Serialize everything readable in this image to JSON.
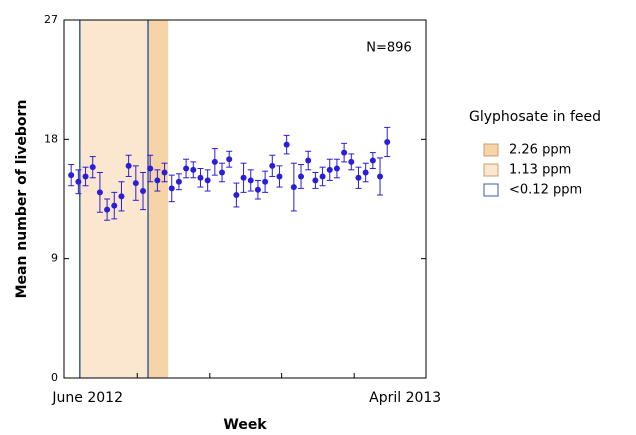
{
  "chart_data": {
    "type": "scatter",
    "xlabel": "Week",
    "ylabel": "Mean number of liveborn",
    "annotation": "N=896",
    "legend_title": "Glyphosate in feed",
    "color": "#2a1fd6",
    "ylim": [
      0,
      27
    ],
    "yticks": [
      0,
      9,
      18,
      27
    ],
    "xlim": [
      0,
      50.4
    ],
    "xticks": [
      {
        "value": 3.3,
        "label": "June 2012"
      },
      {
        "value": 47.5,
        "label": "April 2013"
      }
    ],
    "xtick_marks": [
      10.2,
      20.3,
      30.3,
      40.4
    ],
    "regions": [
      {
        "name": "2.26 ppm",
        "color": "#f7d3a8",
        "edge": "#f7d3a8",
        "from": 11.7,
        "to": 14.5
      },
      {
        "name": "1.13 ppm",
        "color": "#fbe6cf",
        "edge": "#fbe6cf",
        "from": 2.2,
        "to": 11.7
      },
      {
        "name": "<0.12 ppm",
        "color": "#ffffff",
        "edge": "#3a5f9e"
      }
    ],
    "x": [
      1,
      2,
      3,
      4,
      5,
      6,
      7,
      8,
      9,
      10,
      11,
      12,
      13,
      14,
      15,
      16,
      17,
      18,
      19,
      20,
      21,
      22,
      23,
      24,
      25,
      26,
      27,
      28,
      29,
      30,
      31,
      32,
      33,
      34,
      35,
      36,
      37,
      38,
      39,
      40,
      41,
      42,
      43,
      44,
      45
    ],
    "values": [
      15.3,
      14.8,
      15.2,
      15.9,
      14.0,
      12.7,
      13.0,
      13.7,
      16.0,
      14.7,
      14.1,
      15.8,
      14.9,
      15.5,
      14.3,
      14.8,
      15.8,
      15.7,
      15.1,
      14.9,
      16.3,
      15.5,
      16.5,
      13.8,
      15.1,
      14.9,
      14.2,
      14.8,
      16.0,
      15.2,
      17.6,
      14.4,
      15.2,
      16.4,
      14.9,
      15.2,
      15.7,
      15.8,
      17.0,
      16.3,
      15.1,
      15.5,
      16.4,
      15.2,
      17.8
    ],
    "errors": [
      0.8,
      0.9,
      0.7,
      0.8,
      1.5,
      0.8,
      1.0,
      1.1,
      0.8,
      1.3,
      1.4,
      1.0,
      0.8,
      0.7,
      1.0,
      0.6,
      0.7,
      0.6,
      0.7,
      0.8,
      1.0,
      0.7,
      0.6,
      0.9,
      1.1,
      0.8,
      0.7,
      0.8,
      0.8,
      0.8,
      0.7,
      1.8,
      0.9,
      0.7,
      0.6,
      0.7,
      0.8,
      0.7,
      0.7,
      0.6,
      0.8,
      0.7,
      0.6,
      1.4,
      1.1
    ]
  }
}
